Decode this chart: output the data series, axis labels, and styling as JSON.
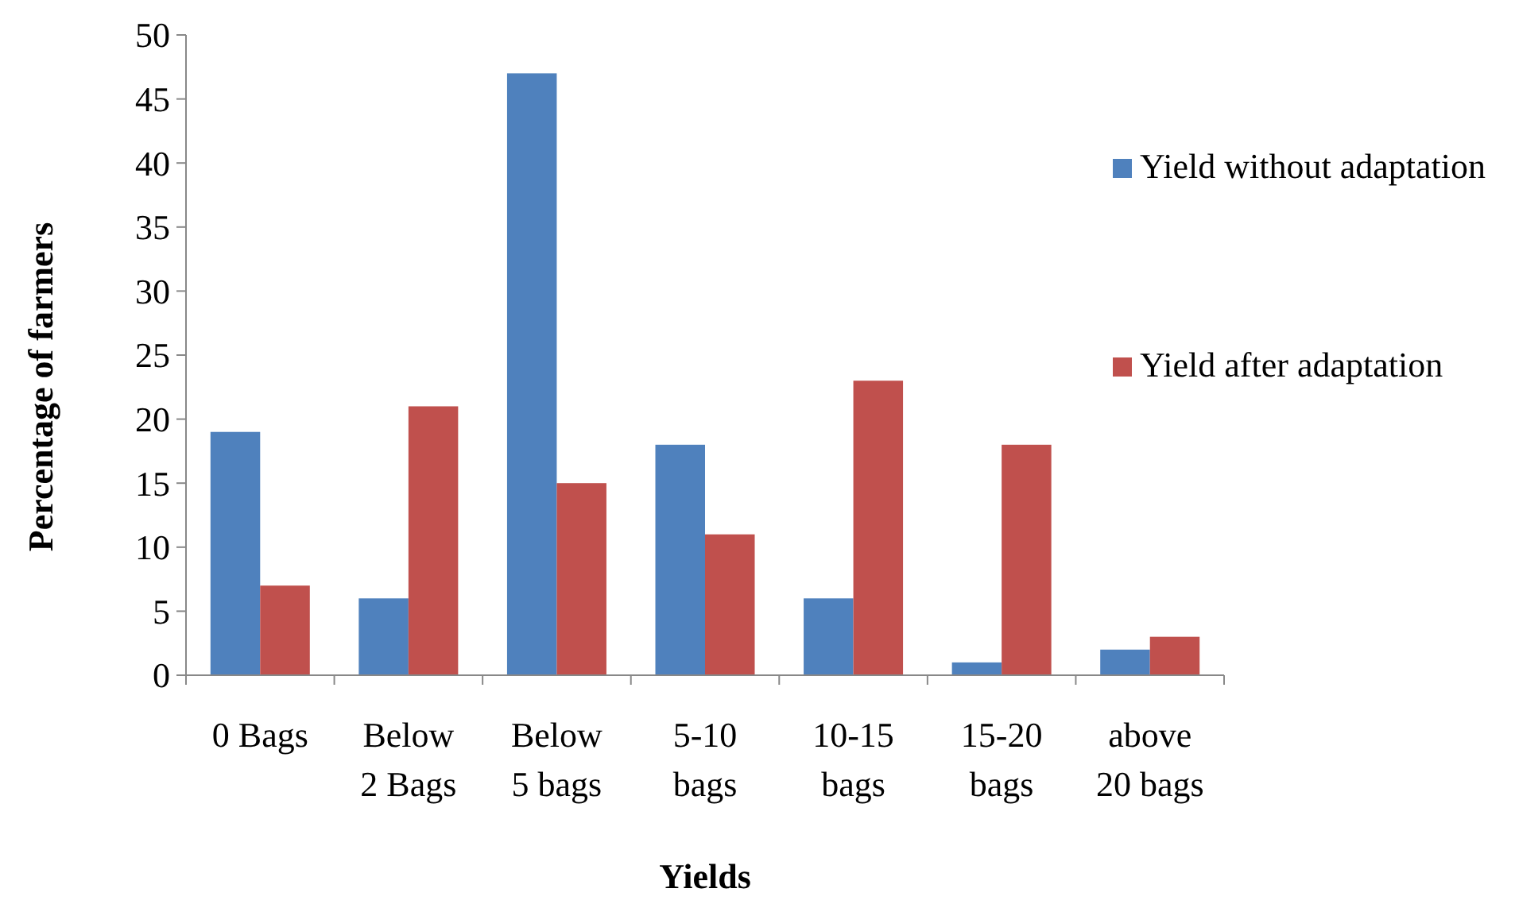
{
  "chart_data": {
    "type": "bar",
    "xlabel": "Yields",
    "ylabel": "Percentage of farmers",
    "categories": [
      "0 Bags",
      "Below\n2 Bags",
      "Below\n5 bags",
      "5-10\nbags",
      "10-15\nbags",
      "15-20\nbags",
      "above\n20 bags"
    ],
    "series": [
      {
        "name": "Yield without adaptation",
        "color": "#4f81bd",
        "values": [
          19,
          6,
          47,
          18,
          6,
          1,
          2
        ]
      },
      {
        "name": "Yield after adaptation",
        "color": "#c0504d",
        "values": [
          7,
          21,
          15,
          11,
          23,
          18,
          3
        ]
      }
    ],
    "ylim": [
      0,
      50
    ],
    "yticks": [
      0,
      5,
      10,
      15,
      20,
      25,
      30,
      35,
      40,
      45,
      50
    ],
    "grid": false,
    "legend": "right"
  }
}
